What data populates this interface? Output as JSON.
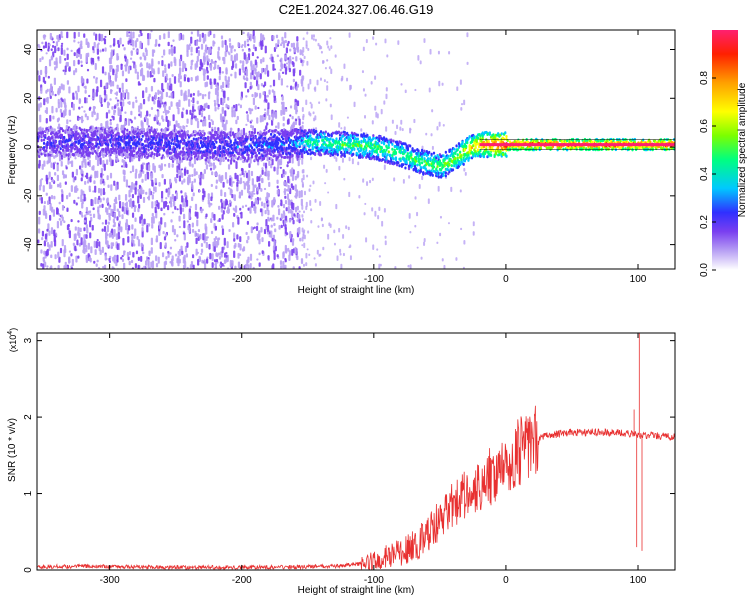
{
  "figure_title": "C2E1.2024.327.06.46.G19",
  "chart_data": [
    {
      "type": "heatmap",
      "title": "",
      "xlabel": "Height of straight line (km)",
      "ylabel": "Frequency (Hz)",
      "xlim": [
        -355,
        128
      ],
      "ylim": [
        -50,
        48
      ],
      "x_ticks": [
        -300,
        -200,
        -100,
        0,
        100
      ],
      "y_ticks": [
        -40,
        -20,
        0,
        20,
        40
      ],
      "grid": false,
      "colorbar": {
        "label": "Normalized spectral amplitude",
        "range": [
          0,
          1
        ],
        "ticks": [
          0.0,
          0.2,
          0.4,
          0.6,
          0.8
        ],
        "tick_labels": [
          "0.0",
          "0.2",
          "0.4",
          "0.6",
          "0.8"
        ],
        "colormap": [
          "#ffffff",
          "#b8a0f4",
          "#7a3ff0",
          "#3030ff",
          "#00c8ff",
          "#00ff80",
          "#7cff00",
          "#ffff00",
          "#ffa000",
          "#ff2000",
          "#ff2070"
        ]
      },
      "noise_region": [
        -355,
        -155
      ],
      "line_center_hz": [
        [
          -355,
          2
        ],
        [
          -300,
          2
        ],
        [
          -250,
          1
        ],
        [
          -200,
          0
        ],
        [
          -150,
          2
        ],
        [
          -120,
          1
        ],
        [
          -100,
          0
        ],
        [
          -80,
          -3
        ],
        [
          -65,
          -6
        ],
        [
          -50,
          -8
        ],
        [
          -40,
          -5
        ],
        [
          -30,
          -1
        ],
        [
          -20,
          1
        ],
        [
          0,
          1
        ],
        [
          50,
          1
        ],
        [
          90,
          1
        ],
        [
          100,
          1
        ],
        [
          128,
          1
        ]
      ],
      "line_intensity": [
        [
          -355,
          0.25
        ],
        [
          -280,
          0.3
        ],
        [
          -220,
          0.3
        ],
        [
          -160,
          0.35
        ],
        [
          -150,
          0.5
        ],
        [
          -100,
          0.55
        ],
        [
          -60,
          0.55
        ],
        [
          -40,
          0.6
        ],
        [
          -20,
          0.8
        ],
        [
          0,
          0.95
        ],
        [
          128,
          0.95
        ]
      ]
    },
    {
      "type": "line",
      "title": "",
      "xlabel": "Height of straight line (km)",
      "ylabel": "SNR (10 * v/v)",
      "y_scale_label": "(x10",
      "y_scale_exponent": "4",
      "xlim": [
        -355,
        128
      ],
      "ylim": [
        0,
        3.1
      ],
      "x_ticks": [
        -300,
        -200,
        -100,
        0,
        100
      ],
      "y_ticks": [
        0,
        1,
        2,
        3
      ],
      "grid": false,
      "series_color": "#e83030",
      "envelope": [
        [
          -355,
          0.04
        ],
        [
          -320,
          0.05
        ],
        [
          -280,
          0.04
        ],
        [
          -240,
          0.035
        ],
        [
          -200,
          0.035
        ],
        [
          -160,
          0.04
        ],
        [
          -130,
          0.05
        ],
        [
          -110,
          0.08
        ],
        [
          -100,
          0.12
        ],
        [
          -90,
          0.18
        ],
        [
          -80,
          0.22
        ],
        [
          -70,
          0.3
        ],
        [
          -60,
          0.45
        ],
        [
          -50,
          0.65
        ],
        [
          -40,
          0.85
        ],
        [
          -30,
          1.0
        ],
        [
          -20,
          1.1
        ],
        [
          -10,
          1.25
        ],
        [
          0,
          1.4
        ],
        [
          10,
          1.55
        ],
        [
          20,
          1.7
        ],
        [
          30,
          1.76
        ],
        [
          50,
          1.8
        ],
        [
          80,
          1.8
        ],
        [
          95,
          1.78
        ],
        [
          100,
          1.76
        ],
        [
          110,
          1.76
        ],
        [
          128,
          1.74
        ]
      ],
      "spikes": [
        [
          97,
          2.1
        ],
        [
          99,
          0.3
        ],
        [
          101,
          3.1
        ],
        [
          103,
          0.25
        ]
      ]
    }
  ]
}
